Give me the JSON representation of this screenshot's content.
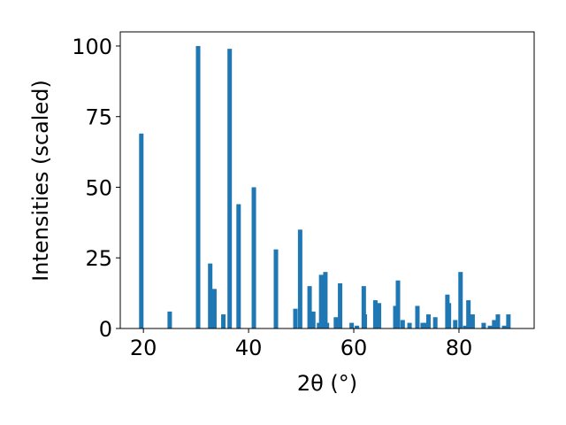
{
  "chart_data": {
    "type": "bar",
    "title": "",
    "xlabel": "2θ (°)",
    "ylabel": "Intensities (scaled)",
    "xlim": [
      15.6,
      94.3
    ],
    "ylim": [
      0,
      105
    ],
    "xticks": [
      20,
      40,
      60,
      80
    ],
    "yticks": [
      0,
      25,
      50,
      75,
      100
    ],
    "grid": false,
    "legend": "none",
    "bar_color": "#1f77b4",
    "x": [
      19.6,
      25.0,
      30.4,
      32.7,
      33.5,
      35.2,
      36.4,
      38.1,
      41.0,
      45.2,
      48.9,
      49.8,
      51.6,
      52.3,
      53.4,
      53.8,
      54.6,
      54.9,
      56.6,
      57.4,
      59.6,
      60.6,
      61.9,
      62.1,
      64.1,
      64.8,
      67.9,
      68.4,
      69.3,
      70.6,
      72.1,
      73.1,
      73.5,
      74.2,
      75.5,
      77.8,
      78.1,
      79.3,
      80.3,
      81.2,
      81.8,
      82.6,
      84.7,
      85.9,
      86.7,
      87.4,
      88.6,
      89.4
    ],
    "values": [
      69,
      6,
      100,
      23,
      14,
      5,
      99,
      44,
      50,
      28,
      7,
      35,
      15,
      6,
      2,
      19,
      20,
      2,
      4,
      16,
      2,
      1,
      15,
      5,
      10,
      9,
      8,
      17,
      3,
      2,
      8,
      2,
      2,
      5,
      4,
      12,
      9,
      3,
      20,
      1,
      10,
      5,
      2,
      1,
      3,
      5,
      1,
      5
    ]
  }
}
